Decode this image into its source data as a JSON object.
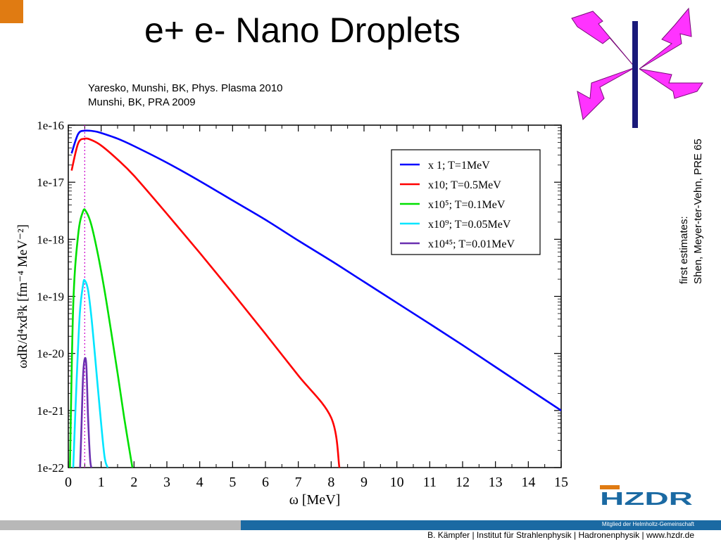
{
  "slide": {
    "title": "e+ e- Nano Droplets",
    "refs": [
      "Yaresko, Munshi, BK, Phys. Plasma 2010",
      "Munshi, BK, PRA 2009"
    ],
    "side_note": [
      "first estimates:",
      "Shen, Meyer-ter-Vehn, PRE 65"
    ],
    "footer_member": "Mitglied der Helmholtz-Gemeinschaft",
    "footer": "B. Kämpfer | Institut für Strahlenphysik | Hadronenphysik | www.hzdr.de",
    "logo_text": "HZDR",
    "colors": {
      "accent_orange": "#e07b12",
      "footer_blue": "#1b6aa3",
      "footer_gray": "#b8b8b8",
      "emblem_magenta": "#ff33ff",
      "emblem_navy": "#1a1a7a"
    }
  },
  "chart_data": {
    "type": "line",
    "xlabel": "ω [MeV]",
    "ylabel": "ωdR/d⁴xd³k [fm⁻⁴ MeV⁻²]",
    "xlim": [
      0,
      15
    ],
    "ylim": [
      1e-22,
      1e-16
    ],
    "yscale": "log",
    "x_ticks": [
      "0",
      "1",
      "2",
      "3",
      "4",
      "5",
      "6",
      "7",
      "8",
      "9",
      "10",
      "11",
      "12",
      "13",
      "14",
      "15"
    ],
    "y_ticks": [
      "1e-16",
      "1e-17",
      "1e-18",
      "1e-19",
      "1e-20",
      "1e-21",
      "1e-22"
    ],
    "reference_line_x": 0.5,
    "legend_position": "top-right",
    "series": [
      {
        "name": "x 1;    T=1MeV",
        "color": "#0000ff",
        "x": [
          0.1,
          0.3,
          0.5,
          0.8,
          1.0,
          1.5,
          2,
          3,
          4,
          5,
          6,
          7,
          8,
          9,
          10,
          11,
          12,
          13,
          14,
          15
        ],
        "y": [
          3.2e-17,
          7e-17,
          8e-17,
          7.8e-17,
          7.3e-17,
          5.8e-17,
          4.3e-17,
          2.2e-17,
          1.05e-17,
          4.8e-18,
          2.2e-18,
          9.5e-19,
          4.2e-19,
          1.8e-19,
          7.7e-20,
          3.3e-20,
          1.4e-20,
          5.8e-21,
          2.4e-21,
          1e-21
        ]
      },
      {
        "name": "x10;   T=0.5MeV",
        "color": "#ff0000",
        "x": [
          0.1,
          0.3,
          0.5,
          0.7,
          1.0,
          1.5,
          2,
          3,
          4,
          5,
          6,
          7,
          8,
          8.25
        ],
        "y": [
          1.6e-17,
          4.8e-17,
          5.8e-17,
          5.5e-17,
          4.4e-17,
          2.5e-17,
          1.3e-17,
          2.8e-18,
          5.8e-19,
          1.15e-19,
          2.2e-20,
          4.1e-21,
          7.5e-22,
          1e-22
        ]
      },
      {
        "name": "x10⁵;  T=0.1MeV",
        "color": "#00e000",
        "x": [
          0.05,
          0.15,
          0.3,
          0.45,
          0.55,
          0.7,
          0.9,
          1.1,
          1.3,
          1.5,
          1.7,
          1.95
        ],
        "y": [
          1e-22,
          7e-20,
          1.2e-18,
          3.1e-18,
          3e-18,
          1.8e-18,
          5.5e-19,
          1.3e-19,
          2.5e-20,
          4.5e-21,
          7.5e-22,
          1e-22
        ]
      },
      {
        "name": "x10⁹;  T=0.05MeV",
        "color": "#00e5ff",
        "x": [
          0.15,
          0.25,
          0.35,
          0.45,
          0.5,
          0.6,
          0.7,
          0.8,
          0.95,
          1.1,
          1.2
        ],
        "y": [
          1e-22,
          3e-21,
          5e-20,
          1.6e-19,
          1.9e-19,
          1.3e-19,
          4.5e-20,
          1.1e-20,
          1.2e-21,
          1.6e-22,
          1e-22
        ]
      },
      {
        "name": "x10⁴⁵; T=0.01MeV",
        "color": "#6a2fb0",
        "x": [
          0.36,
          0.4,
          0.45,
          0.5,
          0.55,
          0.6,
          0.66,
          0.7
        ],
        "y": [
          1e-22,
          5e-22,
          4e-21,
          8e-21,
          6e-21,
          8e-22,
          1.5e-22,
          1e-22
        ]
      }
    ]
  }
}
